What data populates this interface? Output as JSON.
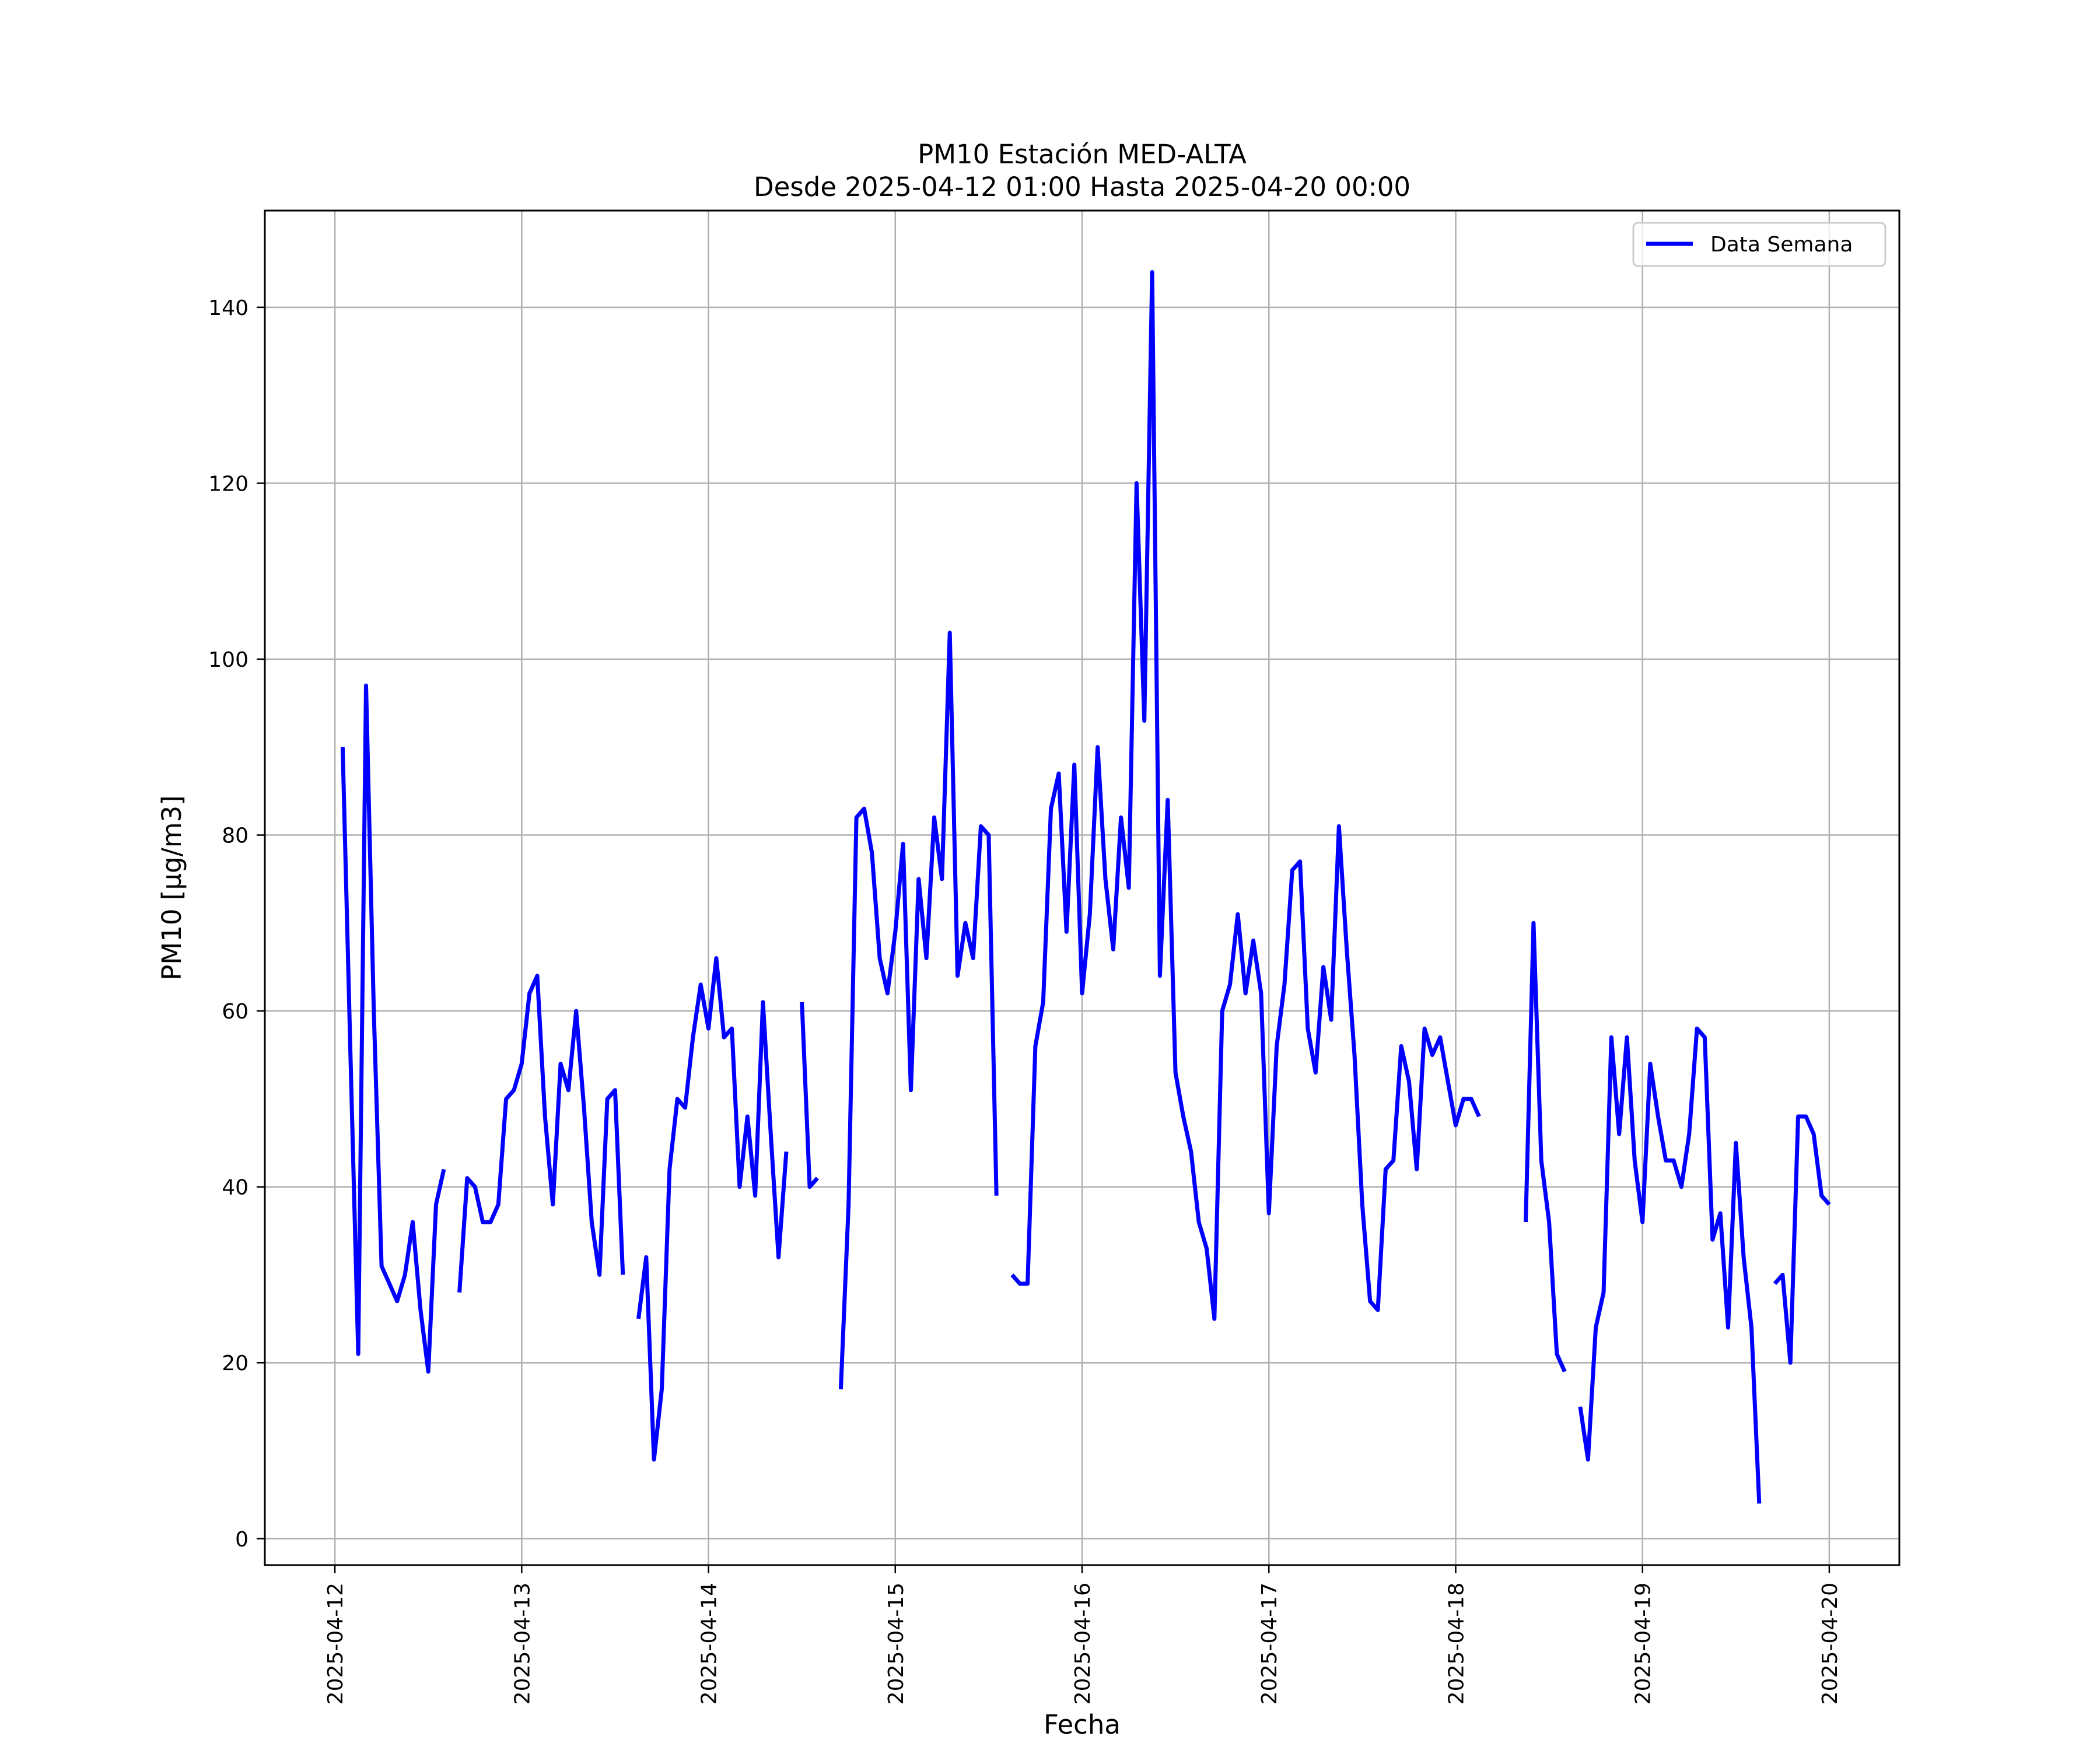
{
  "chart_data": {
    "type": "line",
    "title_line1": "PM10 Estación MED-ALTA",
    "title_line2": "Desde 2025-04-12 01:00 Hasta 2025-04-20 00:00",
    "xlabel": "Fecha",
    "ylabel": "PM10 [μg/m3]",
    "xlim": [
      "2025-04-11 15:00",
      "2025-04-20 09:00"
    ],
    "ylim": [
      -3,
      151
    ],
    "grid": true,
    "legend_position": "top-right",
    "x_ticks": [
      "2025-04-12",
      "2025-04-13",
      "2025-04-14",
      "2025-04-15",
      "2025-04-16",
      "2025-04-17",
      "2025-04-18",
      "2025-04-19",
      "2025-04-20"
    ],
    "y_ticks": [
      0,
      20,
      40,
      60,
      80,
      100,
      120,
      140
    ],
    "series": [
      {
        "name": "Data Semana",
        "color": "#0000ff",
        "points": [
          [
            "2025-04-12 01:00",
            90
          ],
          [
            "2025-04-12 02:00",
            55
          ],
          [
            "2025-04-12 03:00",
            21
          ],
          [
            "2025-04-12 04:00",
            97
          ],
          [
            "2025-04-12 05:00",
            60
          ],
          [
            "2025-04-12 06:00",
            31
          ],
          [
            "2025-04-12 07:00",
            29
          ],
          [
            "2025-04-12 08:00",
            27
          ],
          [
            "2025-04-12 09:00",
            30
          ],
          [
            "2025-04-12 10:00",
            36
          ],
          [
            "2025-04-12 11:00",
            26
          ],
          [
            "2025-04-12 12:00",
            19
          ],
          [
            "2025-04-12 13:00",
            38
          ],
          [
            "2025-04-12 14:00",
            42
          ],
          [
            "2025-04-12 15:00",
            null
          ],
          [
            "2025-04-12 16:00",
            28
          ],
          [
            "2025-04-12 17:00",
            41
          ],
          [
            "2025-04-12 18:00",
            40
          ],
          [
            "2025-04-12 19:00",
            36
          ],
          [
            "2025-04-12 20:00",
            36
          ],
          [
            "2025-04-12 21:00",
            38
          ],
          [
            "2025-04-12 22:00",
            50
          ],
          [
            "2025-04-12 23:00",
            51
          ],
          [
            "2025-04-13 00:00",
            54
          ],
          [
            "2025-04-13 01:00",
            62
          ],
          [
            "2025-04-13 02:00",
            64
          ],
          [
            "2025-04-13 03:00",
            48
          ],
          [
            "2025-04-13 04:00",
            38
          ],
          [
            "2025-04-13 05:00",
            54
          ],
          [
            "2025-04-13 06:00",
            51
          ],
          [
            "2025-04-13 07:00",
            60
          ],
          [
            "2025-04-13 08:00",
            49
          ],
          [
            "2025-04-13 09:00",
            36
          ],
          [
            "2025-04-13 10:00",
            30
          ],
          [
            "2025-04-13 11:00",
            50
          ],
          [
            "2025-04-13 12:00",
            51
          ],
          [
            "2025-04-13 13:00",
            30
          ],
          [
            "2025-04-13 14:00",
            null
          ],
          [
            "2025-04-13 15:00",
            25
          ],
          [
            "2025-04-13 16:00",
            32
          ],
          [
            "2025-04-13 17:00",
            9
          ],
          [
            "2025-04-13 18:00",
            17
          ],
          [
            "2025-04-13 19:00",
            42
          ],
          [
            "2025-04-13 20:00",
            50
          ],
          [
            "2025-04-13 21:00",
            49
          ],
          [
            "2025-04-13 22:00",
            57
          ],
          [
            "2025-04-13 23:00",
            63
          ],
          [
            "2025-04-14 00:00",
            58
          ],
          [
            "2025-04-14 01:00",
            66
          ],
          [
            "2025-04-14 02:00",
            57
          ],
          [
            "2025-04-14 03:00",
            58
          ],
          [
            "2025-04-14 04:00",
            40
          ],
          [
            "2025-04-14 05:00",
            48
          ],
          [
            "2025-04-14 06:00",
            39
          ],
          [
            "2025-04-14 07:00",
            61
          ],
          [
            "2025-04-14 08:00",
            46
          ],
          [
            "2025-04-14 09:00",
            32
          ],
          [
            "2025-04-14 10:00",
            44
          ],
          [
            "2025-04-14 11:00",
            null
          ],
          [
            "2025-04-14 12:00",
            61
          ],
          [
            "2025-04-14 13:00",
            40
          ],
          [
            "2025-04-14 14:00",
            41
          ],
          [
            "2025-04-14 15:00",
            null
          ],
          [
            "2025-04-14 17:00",
            17
          ],
          [
            "2025-04-14 18:00",
            38
          ],
          [
            "2025-04-14 19:00",
            82
          ],
          [
            "2025-04-14 20:00",
            83
          ],
          [
            "2025-04-14 21:00",
            78
          ],
          [
            "2025-04-14 22:00",
            66
          ],
          [
            "2025-04-14 23:00",
            62
          ],
          [
            "2025-04-15 00:00",
            69
          ],
          [
            "2025-04-15 01:00",
            79
          ],
          [
            "2025-04-15 02:00",
            51
          ],
          [
            "2025-04-15 03:00",
            75
          ],
          [
            "2025-04-15 04:00",
            66
          ],
          [
            "2025-04-15 05:00",
            82
          ],
          [
            "2025-04-15 06:00",
            75
          ],
          [
            "2025-04-15 07:00",
            103
          ],
          [
            "2025-04-15 08:00",
            64
          ],
          [
            "2025-04-15 09:00",
            70
          ],
          [
            "2025-04-15 10:00",
            66
          ],
          [
            "2025-04-15 11:00",
            81
          ],
          [
            "2025-04-15 12:00",
            80
          ],
          [
            "2025-04-15 13:00",
            39
          ],
          [
            "2025-04-15 14:00",
            null
          ],
          [
            "2025-04-15 15:00",
            30
          ],
          [
            "2025-04-15 16:00",
            29
          ],
          [
            "2025-04-15 17:00",
            29
          ],
          [
            "2025-04-15 18:00",
            56
          ],
          [
            "2025-04-15 19:00",
            61
          ],
          [
            "2025-04-15 20:00",
            83
          ],
          [
            "2025-04-15 21:00",
            87
          ],
          [
            "2025-04-15 22:00",
            69
          ],
          [
            "2025-04-15 23:00",
            88
          ],
          [
            "2025-04-16 00:00",
            62
          ],
          [
            "2025-04-16 01:00",
            71
          ],
          [
            "2025-04-16 02:00",
            90
          ],
          [
            "2025-04-16 03:00",
            75
          ],
          [
            "2025-04-16 04:00",
            67
          ],
          [
            "2025-04-16 05:00",
            82
          ],
          [
            "2025-04-16 06:00",
            74
          ],
          [
            "2025-04-16 07:00",
            120
          ],
          [
            "2025-04-16 08:00",
            93
          ],
          [
            "2025-04-16 09:00",
            144
          ],
          [
            "2025-04-16 10:00",
            64
          ],
          [
            "2025-04-16 11:00",
            84
          ],
          [
            "2025-04-16 12:00",
            53
          ],
          [
            "2025-04-16 13:00",
            48
          ],
          [
            "2025-04-16 14:00",
            44
          ],
          [
            "2025-04-16 15:00",
            36
          ],
          [
            "2025-04-16 16:00",
            33
          ],
          [
            "2025-04-16 17:00",
            25
          ],
          [
            "2025-04-16 18:00",
            60
          ],
          [
            "2025-04-16 19:00",
            63
          ],
          [
            "2025-04-16 20:00",
            71
          ],
          [
            "2025-04-16 21:00",
            62
          ],
          [
            "2025-04-16 22:00",
            68
          ],
          [
            "2025-04-16 23:00",
            62
          ],
          [
            "2025-04-17 00:00",
            37
          ],
          [
            "2025-04-17 01:00",
            56
          ],
          [
            "2025-04-17 02:00",
            63
          ],
          [
            "2025-04-17 03:00",
            76
          ],
          [
            "2025-04-17 04:00",
            77
          ],
          [
            "2025-04-17 05:00",
            58
          ],
          [
            "2025-04-17 06:00",
            53
          ],
          [
            "2025-04-17 07:00",
            65
          ],
          [
            "2025-04-17 08:00",
            59
          ],
          [
            "2025-04-17 09:00",
            81
          ],
          [
            "2025-04-17 10:00",
            67
          ],
          [
            "2025-04-17 11:00",
            55
          ],
          [
            "2025-04-17 12:00",
            38
          ],
          [
            "2025-04-17 13:00",
            27
          ],
          [
            "2025-04-17 14:00",
            26
          ],
          [
            "2025-04-17 15:00",
            42
          ],
          [
            "2025-04-17 16:00",
            43
          ],
          [
            "2025-04-17 17:00",
            56
          ],
          [
            "2025-04-17 18:00",
            52
          ],
          [
            "2025-04-17 19:00",
            42
          ],
          [
            "2025-04-17 20:00",
            58
          ],
          [
            "2025-04-17 21:00",
            55
          ],
          [
            "2025-04-17 22:00",
            57
          ],
          [
            "2025-04-17 23:00",
            52
          ],
          [
            "2025-04-18 00:00",
            47
          ],
          [
            "2025-04-18 01:00",
            50
          ],
          [
            "2025-04-18 02:00",
            50
          ],
          [
            "2025-04-18 03:00",
            48
          ],
          [
            "2025-04-18 04:00",
            null
          ],
          [
            "2025-04-18 09:00",
            36
          ],
          [
            "2025-04-18 10:00",
            70
          ],
          [
            "2025-04-18 11:00",
            43
          ],
          [
            "2025-04-18 12:00",
            36
          ],
          [
            "2025-04-18 13:00",
            21
          ],
          [
            "2025-04-18 14:00",
            19
          ],
          [
            "2025-04-18 15:00",
            null
          ],
          [
            "2025-04-18 16:00",
            15
          ],
          [
            "2025-04-18 17:00",
            9
          ],
          [
            "2025-04-18 18:00",
            24
          ],
          [
            "2025-04-18 19:00",
            28
          ],
          [
            "2025-04-18 20:00",
            57
          ],
          [
            "2025-04-18 21:00",
            46
          ],
          [
            "2025-04-18 22:00",
            57
          ],
          [
            "2025-04-18 23:00",
            43
          ],
          [
            "2025-04-19 00:00",
            36
          ],
          [
            "2025-04-19 01:00",
            54
          ],
          [
            "2025-04-19 02:00",
            48
          ],
          [
            "2025-04-19 03:00",
            43
          ],
          [
            "2025-04-19 04:00",
            43
          ],
          [
            "2025-04-19 05:00",
            40
          ],
          [
            "2025-04-19 06:00",
            46
          ],
          [
            "2025-04-19 07:00",
            58
          ],
          [
            "2025-04-19 08:00",
            57
          ],
          [
            "2025-04-19 09:00",
            34
          ],
          [
            "2025-04-19 10:00",
            37
          ],
          [
            "2025-04-19 11:00",
            24
          ],
          [
            "2025-04-19 12:00",
            45
          ],
          [
            "2025-04-19 13:00",
            32
          ],
          [
            "2025-04-19 14:00",
            24
          ],
          [
            "2025-04-19 15:00",
            4
          ],
          [
            "2025-04-19 16:00",
            null
          ],
          [
            "2025-04-19 17:00",
            29
          ],
          [
            "2025-04-19 18:00",
            30
          ],
          [
            "2025-04-19 19:00",
            20
          ],
          [
            "2025-04-19 20:00",
            48
          ],
          [
            "2025-04-19 21:00",
            48
          ],
          [
            "2025-04-19 22:00",
            46
          ],
          [
            "2025-04-19 23:00",
            39
          ],
          [
            "2025-04-20 00:00",
            38
          ]
        ]
      }
    ]
  }
}
